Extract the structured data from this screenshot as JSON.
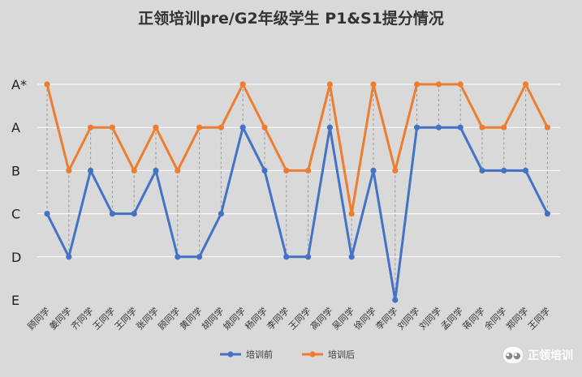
{
  "chart_data": {
    "type": "line",
    "title": "正领培训pre/G2年级学生 P1&S1提分情况",
    "y_levels": [
      "E",
      "D",
      "C",
      "B",
      "A",
      "A*"
    ],
    "categories": [
      "顾同学",
      "姜同学",
      "齐同学",
      "王同学",
      "王同学",
      "张同学",
      "顾同学",
      "黄同学",
      "胡同学",
      "姚同学",
      "杨同学",
      "李同学",
      "王同学",
      "高同学",
      "吴同学",
      "徐同学",
      "李同学",
      "刘同学",
      "刘同学",
      "孟同学",
      "蒋同学",
      "余同学",
      "郑同学",
      "王同学"
    ],
    "series": [
      {
        "name": "培训前",
        "color": "#4472c4",
        "values": [
          "C",
          "D",
          "B",
          "C",
          "C",
          "B",
          "D",
          "D",
          "C",
          "A",
          "B",
          "D",
          "D",
          "A",
          "D",
          "B",
          "E",
          "A",
          "A",
          "A",
          "B",
          "B",
          "B",
          "C"
        ]
      },
      {
        "name": "培训后",
        "color": "#ed7d31",
        "values": [
          "A*",
          "B",
          "A",
          "A",
          "B",
          "A",
          "B",
          "A",
          "A",
          "A*",
          "A",
          "B",
          "B",
          "A*",
          "C",
          "A*",
          "B",
          "A*",
          "A*",
          "A*",
          "A",
          "A",
          "A*",
          "A"
        ]
      }
    ],
    "grid": true,
    "legend": "bottom"
  },
  "watermark": {
    "text": "正领培训"
  }
}
